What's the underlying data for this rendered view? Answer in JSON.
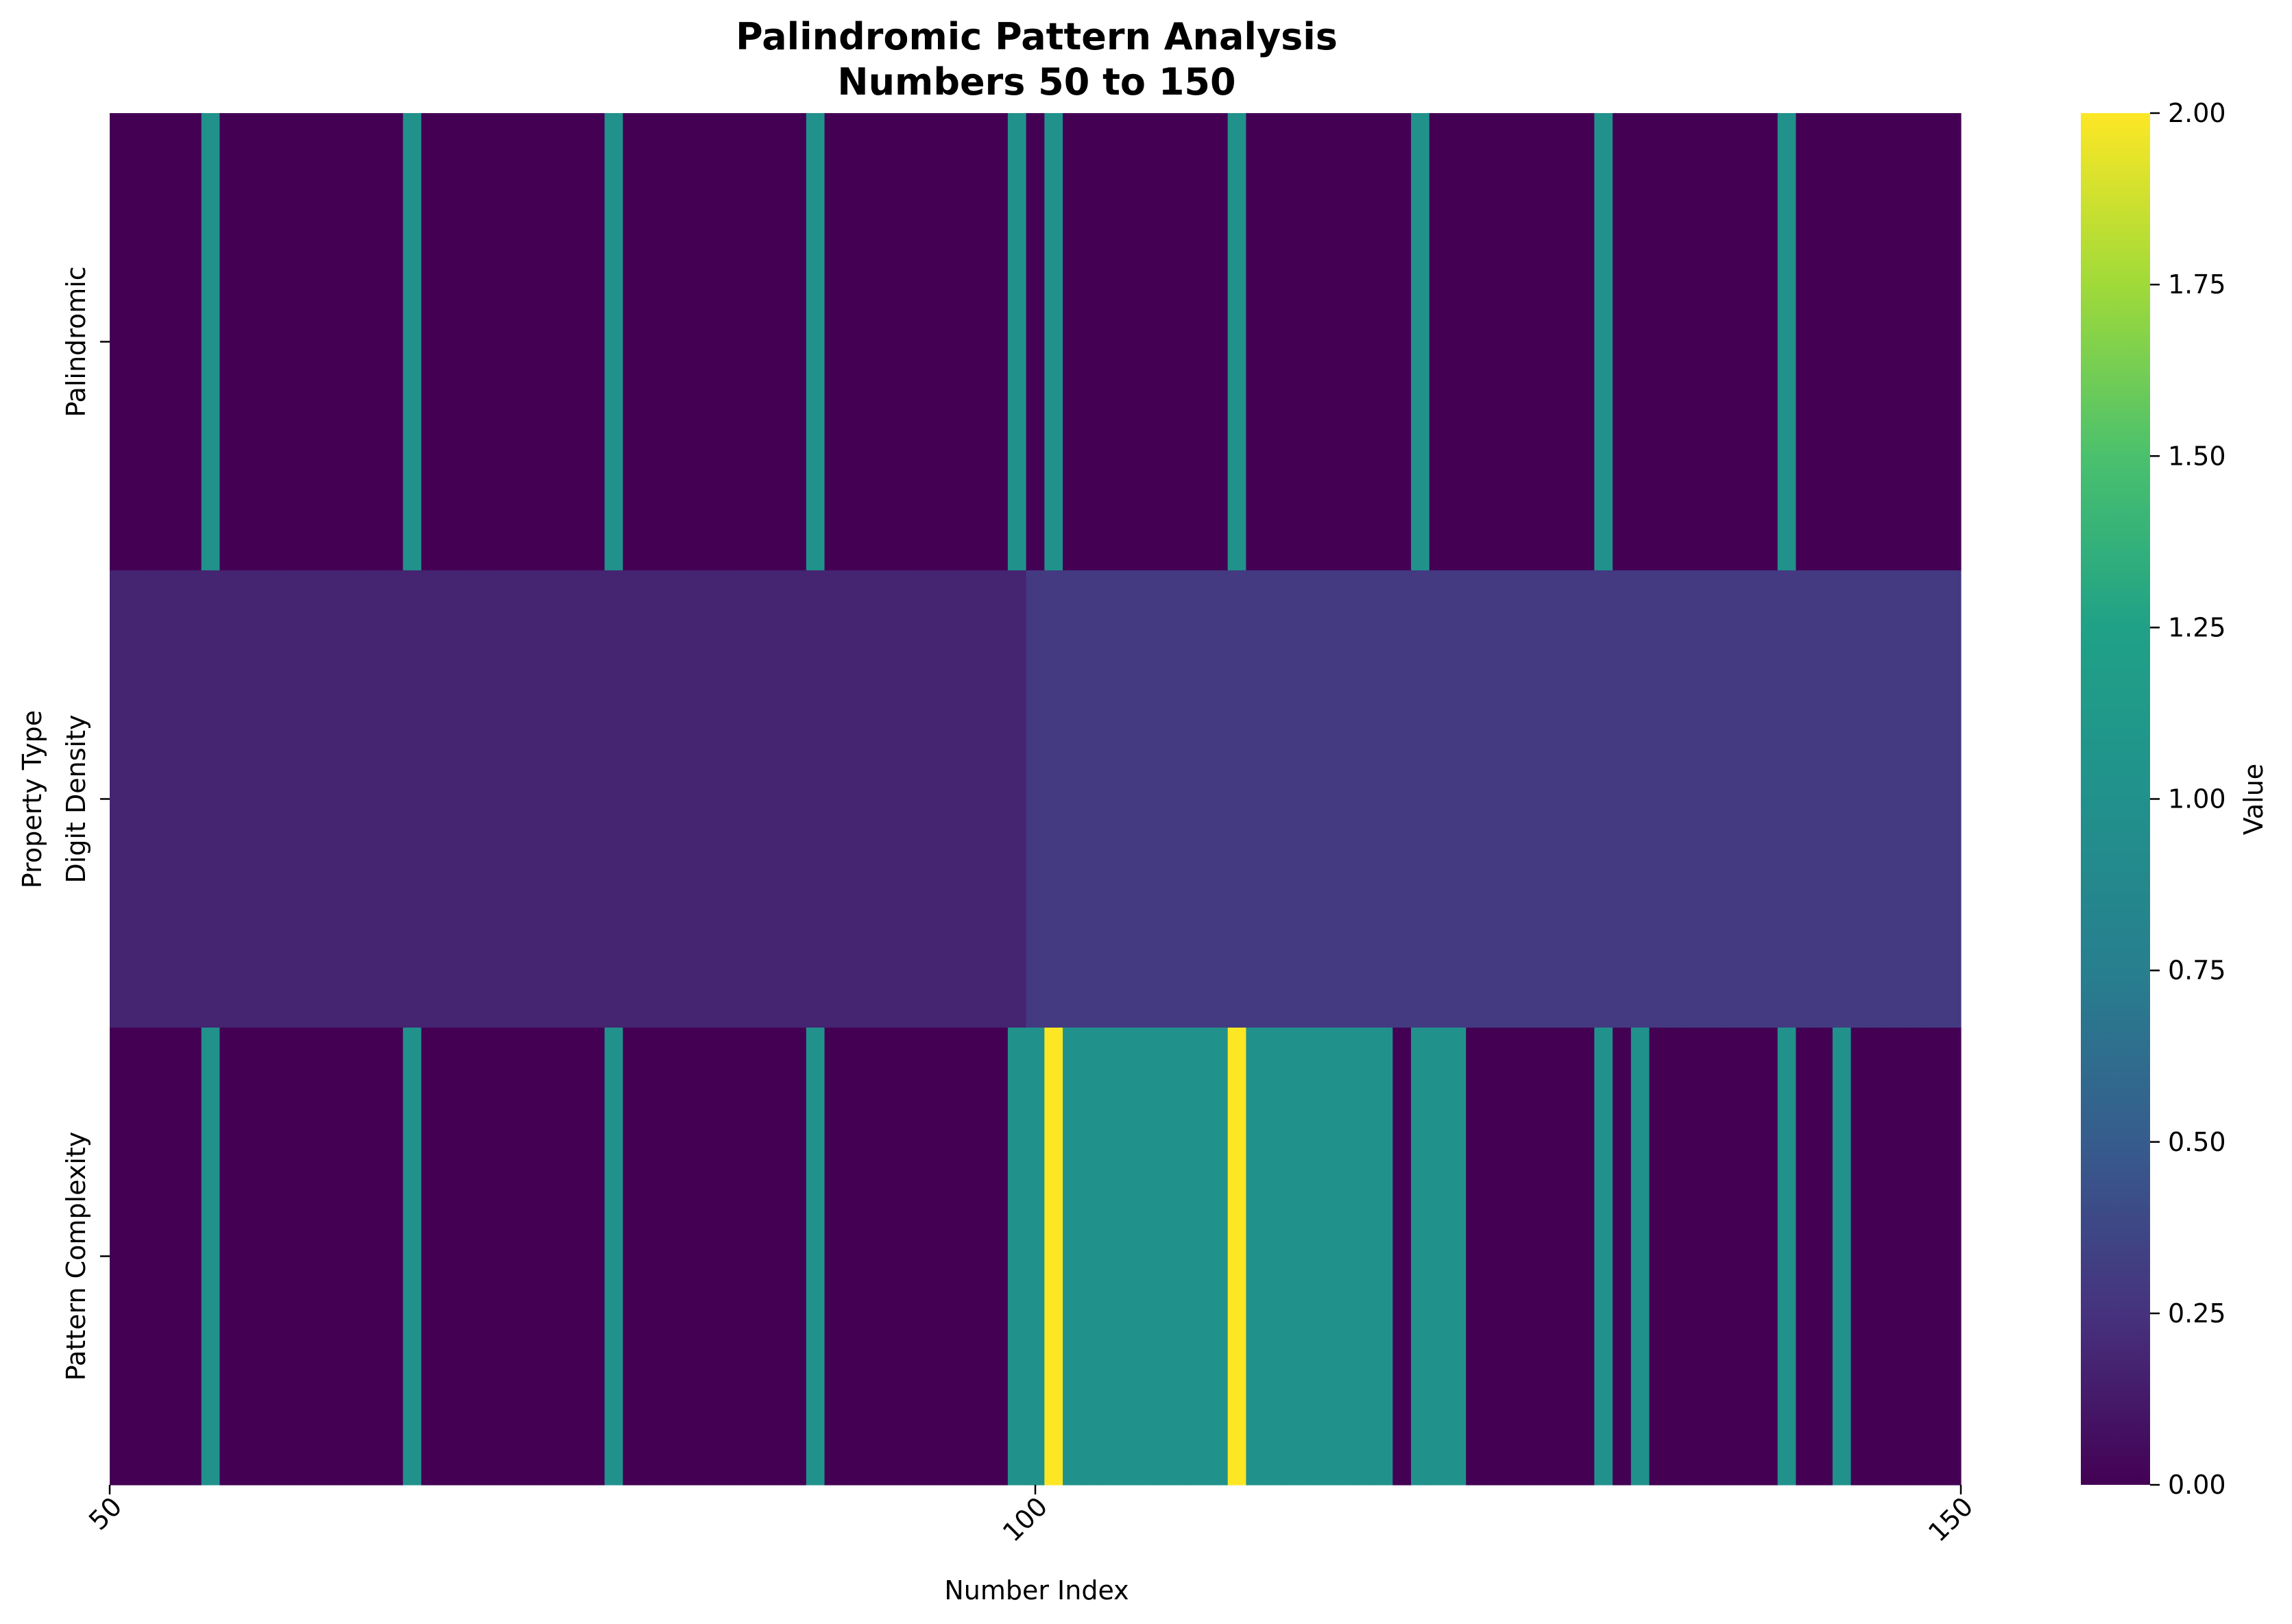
{
  "chart_data": {
    "type": "heatmap",
    "title": [
      "Palindromic Pattern Analysis",
      "Numbers 50 to 150"
    ],
    "xlabel": "Number Index",
    "ylabel": "Property Type",
    "x_range": [
      50,
      150
    ],
    "x_ticks": [
      "50",
      "100",
      "150"
    ],
    "rows": [
      "Palindromic",
      "Digit Density",
      "Pattern Complexity"
    ],
    "colormap": "viridis",
    "colorbar": {
      "label": "Value",
      "range": [
        0,
        2
      ],
      "ticks": [
        "0.00",
        "0.25",
        "0.50",
        "0.75",
        "1.00",
        "1.25",
        "1.50",
        "1.75",
        "2.00"
      ]
    },
    "values": {
      "Palindromic": {
        "1_at": [
          55,
          66,
          77,
          88,
          99,
          101,
          111,
          121,
          131,
          141
        ],
        "default": 0
      },
      "Digit Density": {
        "segments": [
          {
            "from": 50,
            "to": 99,
            "value": 0.18
          },
          {
            "from": 100,
            "to": 150,
            "value": 0.3
          }
        ]
      },
      "Pattern Complexity": {
        "2_at": [
          101,
          111
        ],
        "1_at": [
          55,
          66,
          77,
          88,
          99,
          100,
          102,
          103,
          104,
          105,
          106,
          107,
          108,
          109,
          110,
          112,
          113,
          114,
          115,
          116,
          117,
          118,
          119,
          121,
          122,
          123,
          131,
          133,
          141,
          144
        ],
        "default": 0
      }
    }
  }
}
